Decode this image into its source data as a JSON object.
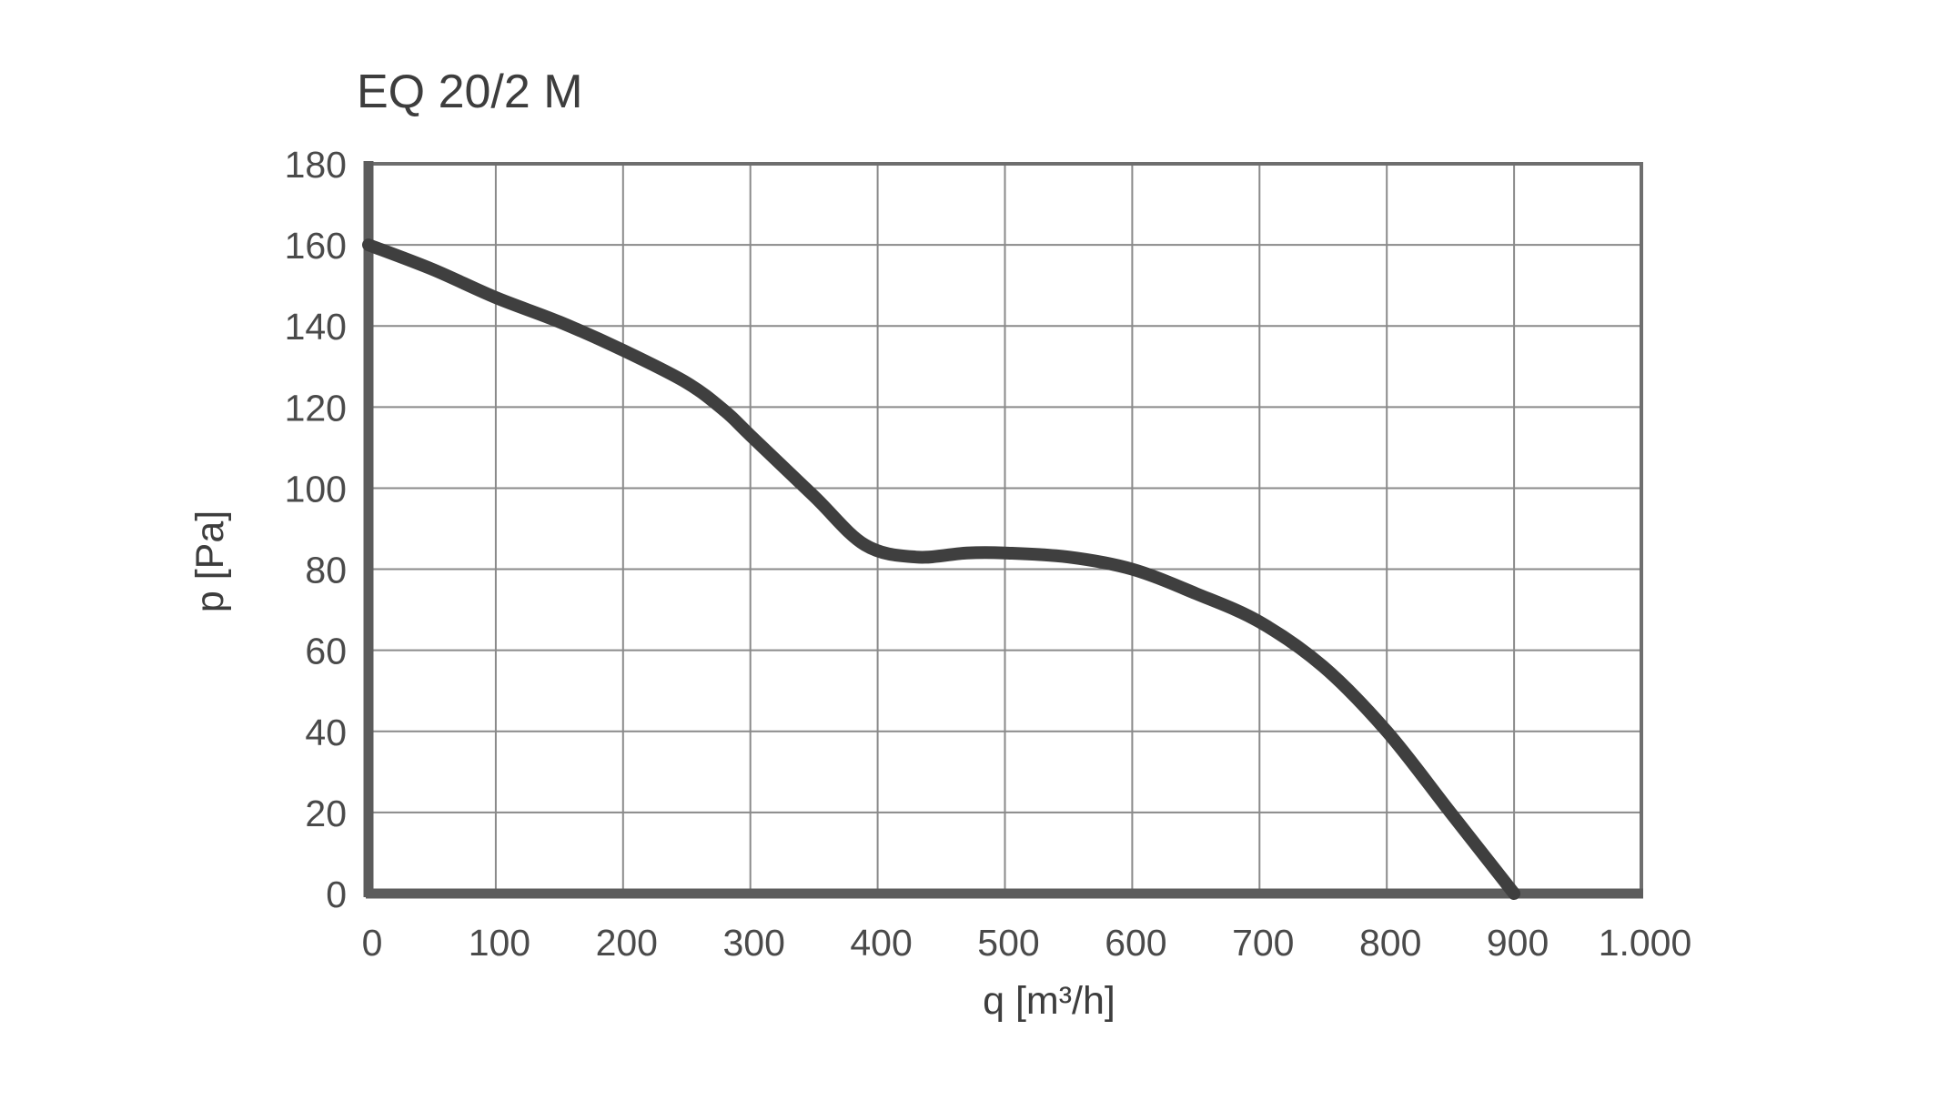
{
  "chart_data": {
    "type": "line",
    "title": "EQ 20/2 M",
    "xlabel": "q [m³/h]",
    "ylabel": "p [Pa]",
    "xlim": [
      0,
      1000
    ],
    "ylim": [
      0,
      180
    ],
    "grid": true,
    "x_ticks": [
      0,
      100,
      200,
      300,
      400,
      500,
      600,
      700,
      800,
      900,
      1000
    ],
    "x_tick_labels": [
      "0",
      "100",
      "200",
      "300",
      "400",
      "500",
      "600",
      "700",
      "800",
      "900",
      "1.000"
    ],
    "y_ticks": [
      0,
      20,
      40,
      60,
      80,
      100,
      120,
      140,
      160,
      180
    ],
    "y_tick_labels": [
      "0",
      "20",
      "40",
      "60",
      "80",
      "100",
      "120",
      "140",
      "160",
      "180"
    ],
    "series": [
      {
        "name": "EQ 20/2 M",
        "color": "#3f3f3f",
        "x": [
          0,
          50,
          100,
          150,
          200,
          250,
          280,
          300,
          350,
          390,
          430,
          470,
          500,
          550,
          600,
          650,
          700,
          750,
          800,
          850,
          900
        ],
        "y": [
          160,
          154,
          147,
          141,
          134,
          126,
          119,
          113,
          98,
          86,
          83,
          84,
          84,
          83,
          80,
          74,
          67,
          56,
          40,
          20,
          0
        ]
      }
    ]
  }
}
